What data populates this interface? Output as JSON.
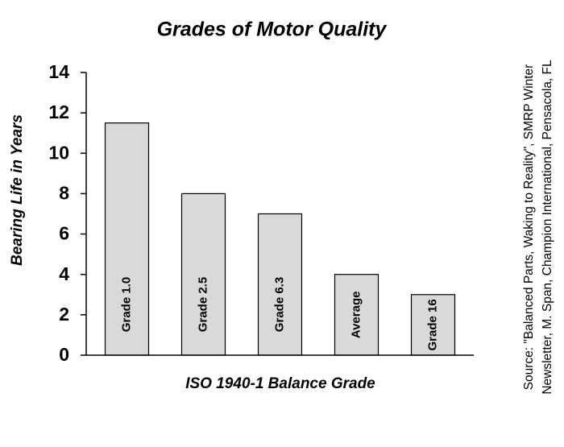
{
  "chart_data": {
    "type": "bar",
    "title": "Grades of Motor Quality",
    "x_label": "ISO 1940-1 Balance Grade",
    "y_label": "Bearing Life in Years",
    "categories": [
      "Grade 1.0",
      "Grade 2.5",
      "Grade 6.3",
      "Average",
      "Grade 16"
    ],
    "values": [
      11.5,
      8,
      7,
      4,
      3
    ],
    "color": "#d9d9d9",
    "ylim": [
      0,
      14
    ],
    "yticks": [
      0,
      2,
      4,
      6,
      8,
      10,
      12,
      14
    ],
    "grid": false,
    "annotations": [
      "Source: \"Balanced Parts, Waking to Reality\", SMRP Winter",
      "Newsletter, M. Span, Champion International, Pensacola, FL"
    ]
  }
}
